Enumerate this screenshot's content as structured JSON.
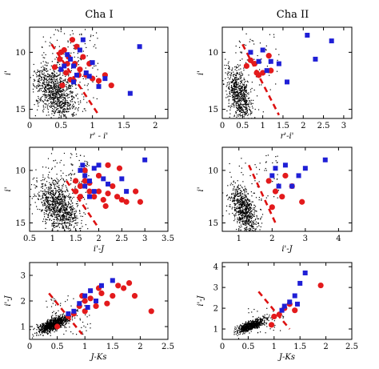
{
  "column_titles": [
    "Cha I",
    "Cha II"
  ],
  "colors": {
    "field": "#000000",
    "red": "#e31a1c",
    "blue": "#1f1fd6",
    "line": "#dd1111"
  },
  "chart_data": [
    {
      "type": "scatter",
      "title": "Cha I",
      "xlabel": "r' - i'",
      "ylabel": "i'",
      "xlim": [
        0,
        2.2
      ],
      "ylim": [
        15.8,
        7.8
      ],
      "y_inverted": true,
      "xticks": [
        0,
        0.5,
        1,
        1.5,
        2
      ],
      "yticks": [
        10,
        15
      ],
      "field_cloud": {
        "cx": 0.42,
        "cy": 13.6,
        "sx": 0.17,
        "sy": 1.25,
        "rho": 0.45,
        "n": 900,
        "sparse_n": 160,
        "sparse_x": [
          0.15,
          1.1
        ],
        "sparse_y": [
          8.0,
          14.5
        ]
      },
      "reference_line": [
        [
          0.35,
          9.3
        ],
        [
          1.1,
          15.5
        ]
      ],
      "series": [
        {
          "marker": "circle",
          "color": "red",
          "points": [
            [
              0.5,
              10.0
            ],
            [
              0.6,
              11.0
            ],
            [
              0.7,
              12.5
            ],
            [
              0.55,
              9.8
            ],
            [
              0.75,
              9.5
            ],
            [
              0.8,
              11.5
            ],
            [
              0.9,
              12.0
            ],
            [
              1.0,
              12.3
            ],
            [
              1.1,
              12.5
            ],
            [
              1.2,
              12.0
            ],
            [
              1.3,
              12.9
            ],
            [
              0.65,
              12.4
            ],
            [
              0.48,
              10.6
            ],
            [
              0.85,
              10.4
            ],
            [
              0.4,
              11.3
            ],
            [
              0.58,
              11.8
            ],
            [
              0.72,
              11.0
            ],
            [
              0.95,
              11.0
            ],
            [
              0.52,
              12.9
            ],
            [
              0.68,
              8.9
            ],
            [
              0.62,
              10.4
            ],
            [
              0.78,
              12.0
            ]
          ]
        },
        {
          "marker": "square",
          "color": "blue",
          "points": [
            [
              0.6,
              10.2
            ],
            [
              0.7,
              11.2
            ],
            [
              0.8,
              9.8
            ],
            [
              0.9,
              11.8
            ],
            [
              1.0,
              10.9
            ],
            [
              1.2,
              12.3
            ],
            [
              0.75,
              12.0
            ],
            [
              1.75,
              9.5
            ],
            [
              1.6,
              13.6
            ],
            [
              0.5,
              11.5
            ],
            [
              0.85,
              8.9
            ],
            [
              0.65,
              10.6
            ],
            [
              0.95,
              12.1
            ],
            [
              0.7,
              12.6
            ],
            [
              1.1,
              13.0
            ],
            [
              0.55,
              11.2
            ]
          ]
        }
      ]
    },
    {
      "type": "scatter",
      "title": "Cha II",
      "xlabel": "r'-i'",
      "ylabel": "i'",
      "xlim": [
        0,
        3.2
      ],
      "ylim": [
        15.8,
        7.8
      ],
      "y_inverted": true,
      "xticks": [
        0,
        0.5,
        1,
        1.5,
        2,
        2.5,
        3
      ],
      "yticks": [
        10,
        15
      ],
      "field_cloud": {
        "cx": 0.42,
        "cy": 13.8,
        "sx": 0.16,
        "sy": 1.2,
        "rho": 0.45,
        "n": 700,
        "sparse_n": 60,
        "sparse_x": [
          0.3,
          1.4
        ],
        "sparse_y": [
          8.3,
          13.5
        ]
      },
      "reference_line": [
        [
          0.5,
          9.3
        ],
        [
          1.4,
          15.5
        ]
      ],
      "series": [
        {
          "marker": "circle",
          "color": "red",
          "points": [
            [
              0.6,
              11.2
            ],
            [
              0.8,
              11.0
            ],
            [
              1.0,
              11.8
            ],
            [
              1.2,
              11.6
            ],
            [
              0.9,
              12.0
            ],
            [
              0.7,
              10.7
            ],
            [
              1.15,
              10.3
            ],
            [
              0.85,
              11.8
            ]
          ]
        },
        {
          "marker": "square",
          "color": "blue",
          "points": [
            [
              0.7,
              10.0
            ],
            [
              1.0,
              9.8
            ],
            [
              1.2,
              10.8
            ],
            [
              1.4,
              11.0
            ],
            [
              1.6,
              12.6
            ],
            [
              2.1,
              8.5
            ],
            [
              2.3,
              10.6
            ],
            [
              2.7,
              9.0
            ],
            [
              1.1,
              11.6
            ],
            [
              0.9,
              10.8
            ]
          ]
        }
      ]
    },
    {
      "type": "scatter",
      "title": "",
      "xlabel": "i'-J",
      "ylabel": "i'",
      "xlim": [
        0.5,
        3.5
      ],
      "ylim": [
        15.8,
        7.8
      ],
      "y_inverted": true,
      "xticks": [
        0.5,
        1,
        1.5,
        2,
        2.5,
        3,
        3.5
      ],
      "yticks": [
        10,
        15
      ],
      "field_cloud": {
        "cx": 1.12,
        "cy": 13.5,
        "sx": 0.22,
        "sy": 1.3,
        "rho": 0.5,
        "n": 900,
        "sparse_n": 140,
        "sparse_x": [
          0.9,
          1.8
        ],
        "sparse_y": [
          8.3,
          14.5
        ]
      },
      "reference_line": [
        [
          1.3,
          11.0
        ],
        [
          2.0,
          15.5
        ]
      ],
      "series": [
        {
          "marker": "circle",
          "color": "red",
          "points": [
            [
              1.5,
              11.0
            ],
            [
              1.6,
              11.5
            ],
            [
              1.7,
              11.0
            ],
            [
              1.8,
              12.0
            ],
            [
              1.9,
              12.5
            ],
            [
              2.0,
              12.0
            ],
            [
              2.2,
              12.2
            ],
            [
              2.4,
              12.5
            ],
            [
              2.6,
              13.0
            ],
            [
              2.8,
              12.0
            ],
            [
              2.1,
              12.8
            ],
            [
              1.7,
              10.0
            ],
            [
              1.5,
              12.0
            ],
            [
              2.3,
              11.5
            ],
            [
              2.5,
              12.8
            ],
            [
              2.9,
              13.0
            ],
            [
              2.2,
              9.5
            ],
            [
              1.8,
              11.2
            ],
            [
              2.0,
              10.5
            ],
            [
              1.6,
              12.5
            ],
            [
              2.45,
              9.8
            ],
            [
              2.15,
              13.4
            ]
          ]
        },
        {
          "marker": "square",
          "color": "blue",
          "points": [
            [
              1.6,
              10.0
            ],
            [
              1.7,
              10.5
            ],
            [
              1.8,
              11.0
            ],
            [
              1.9,
              9.8
            ],
            [
              2.0,
              9.5
            ],
            [
              2.1,
              10.8
            ],
            [
              1.7,
              11.5
            ],
            [
              1.8,
              12.5
            ],
            [
              2.5,
              10.8
            ],
            [
              2.6,
              12.0
            ],
            [
              3.0,
              9.0
            ],
            [
              1.9,
              12.0
            ],
            [
              2.2,
              11.3
            ],
            [
              1.65,
              9.5
            ]
          ]
        }
      ]
    },
    {
      "type": "scatter",
      "title": "",
      "xlabel": "i'-J",
      "ylabel": "i'",
      "xlim": [
        0.5,
        4.4
      ],
      "ylim": [
        15.8,
        7.8
      ],
      "y_inverted": true,
      "xticks": [
        1,
        2,
        3,
        4
      ],
      "yticks": [
        10,
        15
      ],
      "field_cloud": {
        "cx": 1.15,
        "cy": 13.8,
        "sx": 0.22,
        "sy": 1.2,
        "rho": 0.5,
        "n": 700,
        "sparse_n": 60,
        "sparse_x": [
          1.0,
          2.2
        ],
        "sparse_y": [
          8.4,
          13.0
        ]
      },
      "reference_line": [
        [
          1.3,
          9.5
        ],
        [
          2.1,
          15.0
        ]
      ],
      "series": [
        {
          "marker": "circle",
          "color": "red",
          "points": [
            [
              1.9,
              11.0
            ],
            [
              2.1,
              12.0
            ],
            [
              2.3,
              12.5
            ],
            [
              2.0,
              13.5
            ],
            [
              2.6,
              11.5
            ],
            [
              2.9,
              13.0
            ],
            [
              2.4,
              10.5
            ]
          ]
        },
        {
          "marker": "square",
          "color": "blue",
          "points": [
            [
              2.0,
              10.5
            ],
            [
              2.2,
              11.5
            ],
            [
              2.4,
              9.5
            ],
            [
              2.8,
              10.5
            ],
            [
              3.0,
              9.8
            ],
            [
              3.6,
              9.0
            ],
            [
              2.6,
              11.5
            ],
            [
              2.1,
              9.8
            ]
          ]
        }
      ]
    },
    {
      "type": "scatter",
      "title": "",
      "xlabel": "J-Ks",
      "ylabel": "i'-J",
      "xlim": [
        0,
        2.5
      ],
      "ylim": [
        0.5,
        3.5
      ],
      "y_inverted": false,
      "xticks": [
        0,
        0.5,
        1,
        1.5,
        2,
        2.5
      ],
      "yticks": [
        1,
        2,
        3
      ],
      "field_cloud": {
        "cx": 0.42,
        "cy": 1.08,
        "sx": 0.13,
        "sy": 0.16,
        "rho": 0.72,
        "n": 900,
        "sparse_n": 80,
        "sparse_x": [
          0.3,
          1.1
        ],
        "sparse_y": [
          0.6,
          2.2
        ]
      },
      "reference_line": [
        [
          0.35,
          2.3
        ],
        [
          0.95,
          0.7
        ]
      ],
      "series": [
        {
          "marker": "circle",
          "color": "red",
          "points": [
            [
              0.8,
              1.5
            ],
            [
              0.9,
              1.8
            ],
            [
              1.0,
              2.0
            ],
            [
              1.1,
              2.1
            ],
            [
              1.2,
              1.8
            ],
            [
              1.3,
              2.3
            ],
            [
              1.4,
              1.9
            ],
            [
              1.5,
              2.2
            ],
            [
              1.6,
              2.6
            ],
            [
              1.7,
              2.5
            ],
            [
              1.8,
              2.7
            ],
            [
              2.2,
              1.6
            ],
            [
              0.7,
              1.4
            ],
            [
              0.5,
              1.0
            ],
            [
              1.0,
              1.6
            ],
            [
              1.9,
              2.2
            ],
            [
              1.25,
              2.5
            ],
            [
              0.95,
              2.2
            ]
          ]
        },
        {
          "marker": "square",
          "color": "blue",
          "points": [
            [
              0.8,
              1.6
            ],
            [
              0.9,
              1.9
            ],
            [
              1.0,
              2.2
            ],
            [
              1.1,
              2.4
            ],
            [
              1.2,
              2.0
            ],
            [
              1.3,
              2.6
            ],
            [
              1.5,
              2.8
            ],
            [
              0.7,
              1.5
            ],
            [
              1.05,
              1.75
            ]
          ]
        }
      ]
    },
    {
      "type": "scatter",
      "title": "",
      "xlabel": "J-Ks",
      "ylabel": "i'-J",
      "xlim": [
        0,
        2.5
      ],
      "ylim": [
        0.5,
        4.2
      ],
      "y_inverted": false,
      "xticks": [
        0,
        0.5,
        1,
        1.5,
        2,
        2.5
      ],
      "yticks": [
        1,
        2,
        3,
        4
      ],
      "field_cloud": {
        "cx": 0.55,
        "cy": 1.15,
        "sx": 0.13,
        "sy": 0.16,
        "rho": 0.72,
        "n": 700,
        "sparse_n": 40,
        "sparse_x": [
          0.5,
          1.2
        ],
        "sparse_y": [
          0.8,
          2.0
        ]
      },
      "reference_line": [
        [
          0.7,
          2.8
        ],
        [
          1.3,
          1.0
        ]
      ],
      "series": [
        {
          "marker": "circle",
          "color": "red",
          "points": [
            [
              1.2,
              2.0
            ],
            [
              1.3,
              2.2
            ],
            [
              1.4,
              1.9
            ],
            [
              1.0,
              1.6
            ],
            [
              1.1,
              1.7
            ],
            [
              1.9,
              3.1
            ],
            [
              0.95,
              1.2
            ]
          ]
        },
        {
          "marker": "square",
          "color": "blue",
          "points": [
            [
              1.2,
              2.1
            ],
            [
              1.3,
              2.3
            ],
            [
              1.4,
              2.6
            ],
            [
              1.5,
              3.2
            ],
            [
              1.6,
              3.7
            ],
            [
              1.15,
              1.9
            ],
            [
              1.45,
              2.2
            ]
          ]
        }
      ]
    }
  ]
}
